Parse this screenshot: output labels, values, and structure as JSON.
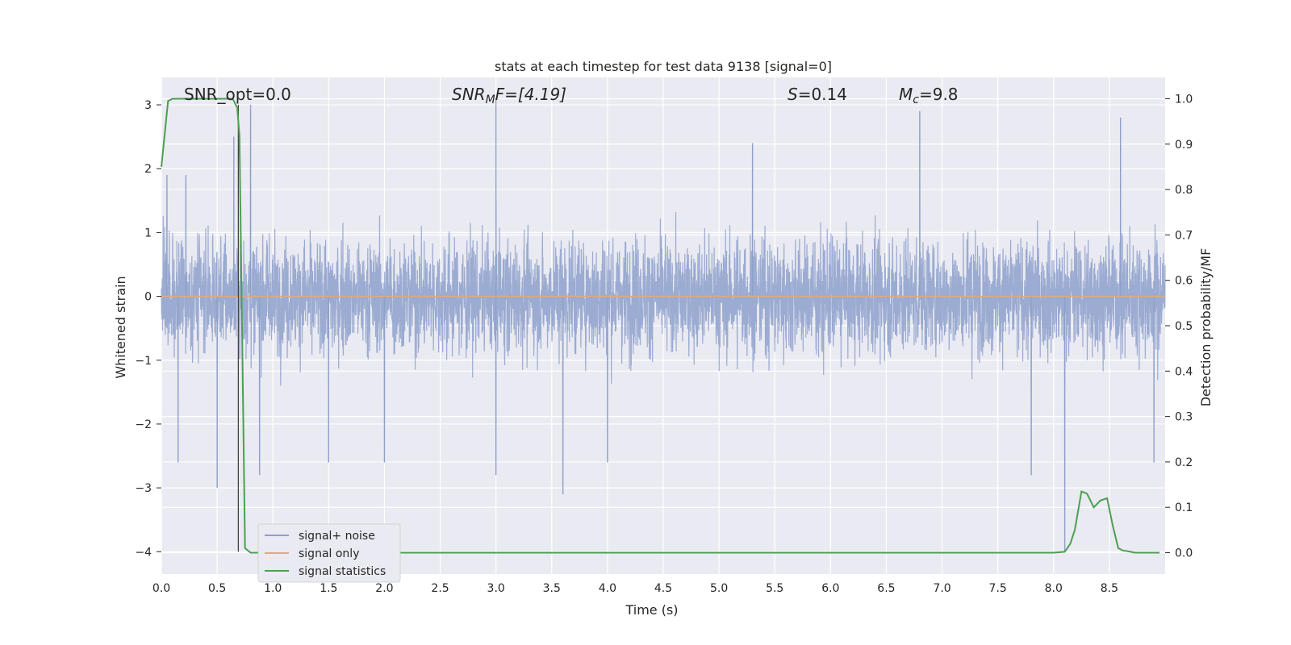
{
  "chart_data": {
    "type": "line",
    "title": "stats at each timestep for test data 9138 [signal=0]",
    "xlabel": "Time (s)",
    "ylabel": "Whitened strain",
    "y2label": "Detection probability/MF",
    "xlim": [
      0.0,
      9.0
    ],
    "ylim": [
      -4.35,
      3.43
    ],
    "y2lim": [
      -0.047,
      1.047
    ],
    "xticks": [
      "0.0",
      "0.5",
      "1.0",
      "1.5",
      "2.0",
      "2.5",
      "3.0",
      "3.5",
      "4.0",
      "4.5",
      "5.0",
      "5.5",
      "6.0",
      "6.5",
      "7.0",
      "7.5",
      "8.0",
      "8.5"
    ],
    "yticks": [
      "3",
      "2",
      "1",
      "0",
      "−1",
      "−2",
      "−3",
      "−4"
    ],
    "y2ticks": [
      "1.0",
      "0.9",
      "0.8",
      "0.7",
      "0.6",
      "0.5",
      "0.4",
      "0.3",
      "0.2",
      "0.1",
      "0.0"
    ],
    "grid": true,
    "legend_position": "lower-left",
    "annotations": {
      "snr_opt": "SNR_opt=0.0",
      "snr_mf_sym": "SNR",
      "snr_mf_sub": "M",
      "snr_mf_rest": "F=[4.19]",
      "s_sym": "S",
      "s_rest": "=0.14",
      "mc_sym": "M",
      "mc_sub": "c",
      "mc_rest": "=9.8"
    },
    "vertical_marker_x": 0.69,
    "series": [
      {
        "name": "signal+ noise",
        "color": "#8da0cb",
        "axis": "left",
        "style": "noise",
        "envelope_upper_typical": 1.5,
        "envelope_lower_typical": -1.5,
        "peaks": [
          [
            0.05,
            1.9
          ],
          [
            0.15,
            -2.6
          ],
          [
            0.22,
            1.9
          ],
          [
            0.5,
            -3.0
          ],
          [
            0.65,
            2.5
          ],
          [
            0.8,
            3.0
          ],
          [
            0.88,
            -2.8
          ],
          [
            1.5,
            -2.6
          ],
          [
            2.0,
            -2.6
          ],
          [
            3.0,
            3.1
          ],
          [
            3.0,
            -2.8
          ],
          [
            3.6,
            -3.1
          ],
          [
            4.0,
            -2.6
          ],
          [
            5.3,
            2.4
          ],
          [
            6.8,
            2.9
          ],
          [
            7.8,
            -2.8
          ],
          [
            8.1,
            -4.0
          ],
          [
            8.6,
            2.8
          ],
          [
            8.9,
            -2.6
          ]
        ]
      },
      {
        "name": "signal only",
        "color": "#e5a77f",
        "axis": "left",
        "x": [
          0.0,
          9.0
        ],
        "y": [
          0.0,
          0.0
        ]
      },
      {
        "name": "signal statistics",
        "color": "#4c9f50",
        "axis": "right",
        "x": [
          0.0,
          0.06,
          0.1,
          0.2,
          0.3,
          0.4,
          0.5,
          0.6,
          0.64,
          0.68,
          0.7,
          0.75,
          0.8,
          0.9,
          1.0,
          2.0,
          3.0,
          4.0,
          5.0,
          6.0,
          7.0,
          8.0,
          8.1,
          8.15,
          8.19,
          8.25,
          8.3,
          8.36,
          8.42,
          8.48,
          8.53,
          8.58,
          8.62,
          8.67,
          8.73,
          8.8,
          8.95
        ],
        "y": [
          0.85,
          0.995,
          1.0,
          1.0,
          1.0,
          1.0,
          1.0,
          1.0,
          1.0,
          0.98,
          0.92,
          0.01,
          0.0,
          0.0,
          0.0,
          0.0,
          0.0,
          0.0,
          0.0,
          0.0,
          0.0,
          0.0,
          0.002,
          0.02,
          0.05,
          0.135,
          0.13,
          0.1,
          0.115,
          0.12,
          0.06,
          0.01,
          0.005,
          0.003,
          0.0,
          0.0,
          0.0
        ]
      }
    ]
  }
}
